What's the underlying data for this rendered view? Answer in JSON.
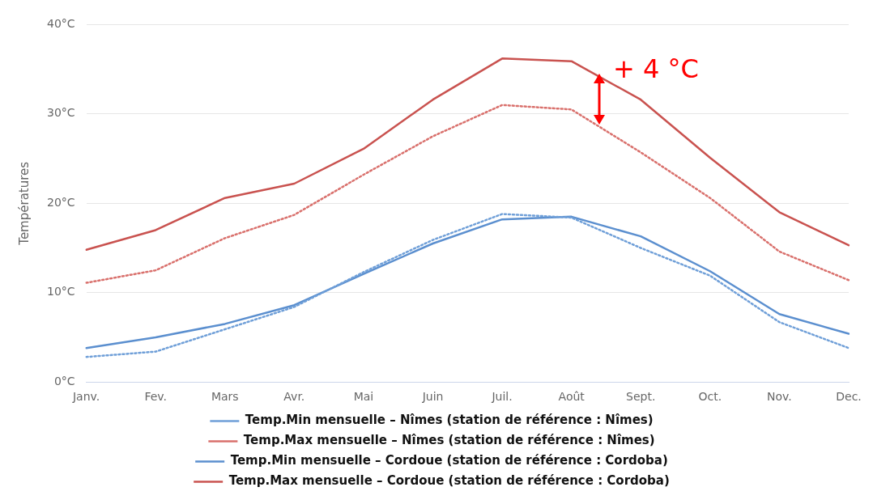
{
  "chart_data": {
    "type": "line",
    "ylabel": "Températures",
    "categories": [
      "Janv.",
      "Fev.",
      "Mars",
      "Avr.",
      "Mai",
      "Juin",
      "Juil.",
      "Août",
      "Sept.",
      "Oct.",
      "Nov.",
      "Dec."
    ],
    "series": [
      {
        "name": "Temp.Min mensuelle – Nîmes (station de référence : Nîmes)",
        "color": "#6f9fd8",
        "line_style": "dotted",
        "values": [
          2.8,
          3.4,
          5.9,
          8.4,
          12.3,
          15.9,
          18.8,
          18.4,
          15.0,
          11.9,
          6.7,
          3.8
        ]
      },
      {
        "name": "Temp.Max mensuelle – Nîmes (station de référence : Nîmes)",
        "color": "#d9706c",
        "line_style": "dotted",
        "values": [
          11.1,
          12.5,
          16.1,
          18.7,
          23.2,
          27.5,
          31.0,
          30.5,
          25.7,
          20.6,
          14.6,
          11.4
        ]
      },
      {
        "name": "Temp.Min mensuelle – Cordoue (station de référence : Cordoba)",
        "color": "#5b8fcf",
        "line_style": "solid",
        "values": [
          3.8,
          5.0,
          6.5,
          8.6,
          12.1,
          15.5,
          18.2,
          18.5,
          16.3,
          12.4,
          7.6,
          5.4
        ]
      },
      {
        "name": "Temp.Max mensuelle – Cordoue (station de référence : Cordoba)",
        "color": "#c9524f",
        "line_style": "solid",
        "values": [
          14.8,
          17.0,
          20.6,
          22.2,
          26.1,
          31.6,
          36.2,
          35.9,
          31.6,
          25.1,
          19.0,
          15.3
        ]
      }
    ],
    "ylim": [
      0,
      40
    ],
    "yticks": [
      {
        "value": 0,
        "label": "0°C"
      },
      {
        "value": 10,
        "label": "10°C"
      },
      {
        "value": 20,
        "label": "20°C"
      },
      {
        "value": 30,
        "label": "30°C"
      },
      {
        "value": 40,
        "label": "40°C"
      }
    ],
    "grid": "y",
    "legend": "bottom",
    "marker": "none",
    "annotations": [
      "+ 4 °C"
    ]
  }
}
